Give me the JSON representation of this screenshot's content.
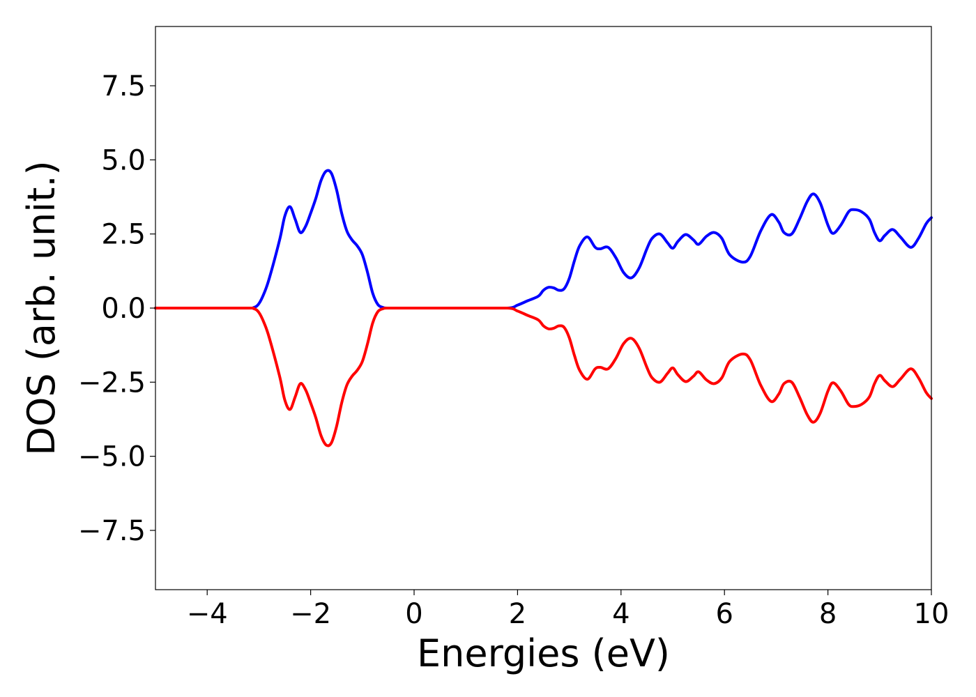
{
  "chart_data": {
    "type": "line",
    "title": "",
    "xlabel": "Energies (eV)",
    "ylabel": "DOS (arb. unit.)",
    "xlim": [
      -5,
      10
    ],
    "ylim": [
      -9.5,
      9.5
    ],
    "xticks": [
      -4,
      -2,
      0,
      2,
      4,
      6,
      8,
      10
    ],
    "xtick_labels": [
      "−4",
      "−2",
      "0",
      "2",
      "4",
      "6",
      "8",
      "10"
    ],
    "yticks": [
      -7.5,
      -5.0,
      -2.5,
      0.0,
      2.5,
      5.0,
      7.5
    ],
    "ytick_labels": [
      "−7.5",
      "−5.0",
      "−2.5",
      "0.0",
      "2.5",
      "5.0",
      "7.5"
    ],
    "grid": false,
    "legend": "none",
    "series": [
      {
        "color": "#0000ff",
        "x": [
          -5.0,
          -3.3,
          -3.1,
          -3.0,
          -2.9,
          -2.8,
          -2.6,
          -2.5,
          -2.4,
          -2.3,
          -2.2,
          -2.1,
          -2.0,
          -1.9,
          -1.8,
          -1.7,
          -1.6,
          -1.5,
          -1.4,
          -1.3,
          -1.2,
          -1.1,
          -1.0,
          -0.9,
          -0.8,
          -0.7,
          -0.6,
          -0.5,
          0.0,
          1.0,
          1.8,
          2.0,
          2.2,
          2.4,
          2.5,
          2.6,
          2.7,
          2.8,
          2.9,
          3.0,
          3.1,
          3.2,
          3.35,
          3.5,
          3.6,
          3.75,
          3.9,
          4.05,
          4.2,
          4.35,
          4.5,
          4.6,
          4.75,
          4.9,
          5.0,
          5.1,
          5.25,
          5.4,
          5.5,
          5.65,
          5.8,
          5.95,
          6.1,
          6.35,
          6.5,
          6.7,
          6.9,
          7.05,
          7.15,
          7.3,
          7.45,
          7.6,
          7.72,
          7.85,
          8.0,
          8.1,
          8.25,
          8.4,
          8.5,
          8.65,
          8.8,
          8.9,
          9.0,
          9.1,
          9.25,
          9.4,
          9.6,
          9.75,
          9.9,
          10.0
        ],
        "values": [
          0,
          0,
          0.02,
          0.15,
          0.5,
          1.0,
          2.3,
          3.1,
          3.42,
          3.0,
          2.55,
          2.75,
          3.2,
          3.7,
          4.3,
          4.62,
          4.55,
          4.0,
          3.2,
          2.6,
          2.3,
          2.1,
          1.8,
          1.2,
          0.5,
          0.12,
          0.02,
          0,
          0,
          0,
          0,
          0.1,
          0.25,
          0.4,
          0.6,
          0.7,
          0.68,
          0.6,
          0.65,
          1.0,
          1.6,
          2.1,
          2.4,
          2.05,
          2.0,
          2.05,
          1.7,
          1.2,
          1.02,
          1.35,
          2.0,
          2.35,
          2.5,
          2.2,
          2.02,
          2.25,
          2.48,
          2.3,
          2.15,
          2.42,
          2.55,
          2.35,
          1.8,
          1.55,
          1.75,
          2.6,
          3.15,
          2.9,
          2.55,
          2.5,
          3.0,
          3.6,
          3.85,
          3.55,
          2.8,
          2.52,
          2.8,
          3.25,
          3.32,
          3.25,
          3.0,
          2.55,
          2.27,
          2.45,
          2.65,
          2.4,
          2.05,
          2.35,
          2.85,
          3.05
        ]
      },
      {
        "color": "#ff0000",
        "x": [
          -5.0,
          -3.3,
          -3.1,
          -3.0,
          -2.9,
          -2.8,
          -2.6,
          -2.5,
          -2.4,
          -2.3,
          -2.2,
          -2.1,
          -2.0,
          -1.9,
          -1.8,
          -1.7,
          -1.6,
          -1.5,
          -1.4,
          -1.3,
          -1.2,
          -1.1,
          -1.0,
          -0.9,
          -0.8,
          -0.7,
          -0.6,
          -0.5,
          0.0,
          1.0,
          1.8,
          2.0,
          2.2,
          2.4,
          2.5,
          2.6,
          2.7,
          2.8,
          2.9,
          3.0,
          3.1,
          3.2,
          3.35,
          3.5,
          3.6,
          3.75,
          3.9,
          4.05,
          4.2,
          4.35,
          4.5,
          4.6,
          4.75,
          4.9,
          5.0,
          5.1,
          5.25,
          5.4,
          5.5,
          5.65,
          5.8,
          5.95,
          6.1,
          6.35,
          6.5,
          6.7,
          6.9,
          7.05,
          7.15,
          7.3,
          7.45,
          7.6,
          7.72,
          7.85,
          8.0,
          8.1,
          8.25,
          8.4,
          8.5,
          8.65,
          8.8,
          8.9,
          9.0,
          9.1,
          9.25,
          9.4,
          9.6,
          9.75,
          9.9,
          10.0
        ],
        "values": [
          0,
          0,
          -0.02,
          -0.15,
          -0.5,
          -1.0,
          -2.3,
          -3.1,
          -3.42,
          -3.0,
          -2.55,
          -2.75,
          -3.2,
          -3.7,
          -4.3,
          -4.62,
          -4.55,
          -4.0,
          -3.2,
          -2.6,
          -2.3,
          -2.1,
          -1.8,
          -1.2,
          -0.5,
          -0.12,
          -0.02,
          0,
          0,
          0,
          0,
          -0.1,
          -0.25,
          -0.4,
          -0.6,
          -0.7,
          -0.68,
          -0.6,
          -0.65,
          -1.0,
          -1.6,
          -2.1,
          -2.4,
          -2.05,
          -2.0,
          -2.05,
          -1.7,
          -1.2,
          -1.02,
          -1.35,
          -2.0,
          -2.35,
          -2.5,
          -2.2,
          -2.02,
          -2.25,
          -2.48,
          -2.3,
          -2.15,
          -2.42,
          -2.55,
          -2.35,
          -1.8,
          -1.55,
          -1.75,
          -2.6,
          -3.15,
          -2.9,
          -2.55,
          -2.5,
          -3.0,
          -3.6,
          -3.85,
          -3.55,
          -2.8,
          -2.52,
          -2.8,
          -3.25,
          -3.32,
          -3.25,
          -3.0,
          -2.55,
          -2.27,
          -2.45,
          -2.65,
          -2.4,
          -2.05,
          -2.35,
          -2.85,
          -3.05
        ]
      }
    ]
  }
}
